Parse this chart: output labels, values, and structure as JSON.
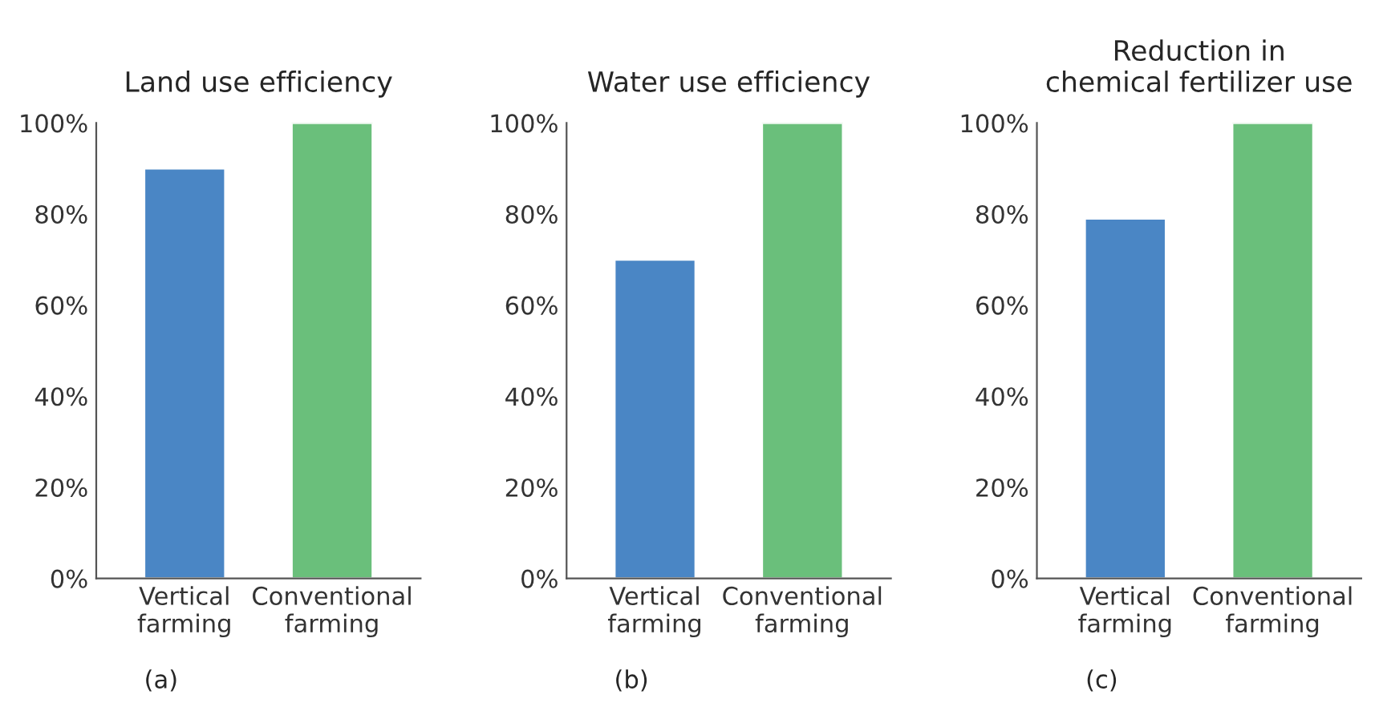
{
  "chart_data": [
    {
      "type": "bar",
      "title": "Land use efficiency",
      "categories": [
        "Vertical\nfarming",
        "Conventional\nfarming"
      ],
      "values": [
        90,
        100
      ],
      "colors": [
        "#4a86c5",
        "#6abf7b"
      ],
      "ylim": [
        0,
        100
      ],
      "yticks": [
        {
          "value": 0,
          "label": "0%"
        },
        {
          "value": 20,
          "label": "20%"
        },
        {
          "value": 40,
          "label": "40%"
        },
        {
          "value": 60,
          "label": "60%"
        },
        {
          "value": 80,
          "label": "80%"
        },
        {
          "value": 100,
          "label": "100%"
        }
      ],
      "grid": false,
      "annotations": [
        "(a)"
      ]
    },
    {
      "type": "bar",
      "title": "Water use efficiency",
      "categories": [
        "Vertical\nfarming",
        "Conventional\nfarming"
      ],
      "values": [
        70,
        100
      ],
      "colors": [
        "#4a86c5",
        "#6abf7b"
      ],
      "ylim": [
        0,
        100
      ],
      "yticks": [
        {
          "value": 0,
          "label": "0%"
        },
        {
          "value": 20,
          "label": "20%"
        },
        {
          "value": 40,
          "label": "40%"
        },
        {
          "value": 60,
          "label": "60%"
        },
        {
          "value": 80,
          "label": "80%"
        },
        {
          "value": 100,
          "label": "100%"
        }
      ],
      "grid": false,
      "annotations": [
        "(b)"
      ]
    },
    {
      "type": "bar",
      "title": "Reduction in\nchemical fertilizer use",
      "categories": [
        "Vertical\nfarming",
        "Conventional\nfarming"
      ],
      "values": [
        79,
        100
      ],
      "colors": [
        "#4a86c5",
        "#6abf7b"
      ],
      "ylim": [
        0,
        100
      ],
      "yticks": [
        {
          "value": 0,
          "label": "0%"
        },
        {
          "value": 20,
          "label": "20%"
        },
        {
          "value": 40,
          "label": "40%"
        },
        {
          "value": 60,
          "label": "60%"
        },
        {
          "value": 80,
          "label": "80%"
        },
        {
          "value": 100,
          "label": "100%"
        }
      ],
      "grid": false,
      "annotations": [
        "(c)"
      ]
    }
  ]
}
